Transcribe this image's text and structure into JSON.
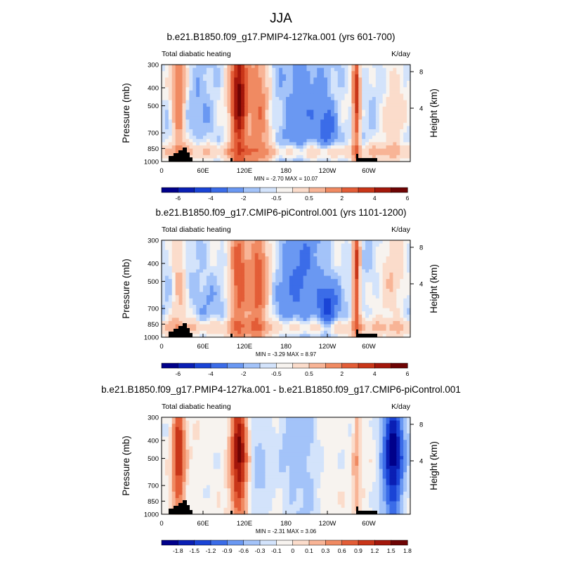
{
  "chart_data": {
    "type": "heatmap",
    "title": "JJA",
    "panels": [
      {
        "title": "b.e21.B1850.f09_g17.PMIP4-127ka.001 (yrs 601-700)",
        "left_label": "Total diabatic heating",
        "right_label": "K/day",
        "ylabel": "Pressure (mb)",
        "ylabel_right": "Height (km)",
        "y_ticks": [
          "300",
          "400",
          "500",
          "700",
          "850",
          "1000"
        ],
        "y_ticks_right": [
          "8",
          "4"
        ],
        "x_ticks": [
          "0",
          "60E",
          "120E",
          "180",
          "120W",
          "60W"
        ],
        "stats": "MIN = -2.70   MAX = 10.07",
        "colorbar_labels": [
          "-6",
          "-4",
          "-2",
          "-0.5",
          "0.5",
          "2",
          "4",
          "6"
        ],
        "anomaly": false,
        "features": {
          "w_indian": 3.0,
          "maritime": 6.5,
          "w_pacific": 3.0,
          "c_pacific": -1.0,
          "e_pacific": -1.8,
          "americas": 4.5,
          "atlantic": 0.8
        }
      },
      {
        "title": "b.e21.B1850.f09_g17.CMIP6-piControl.001 (yrs 1101-1200)",
        "left_label": "Total diabatic heating",
        "right_label": "K/day",
        "ylabel": "Pressure (mb)",
        "ylabel_right": "Height (km)",
        "y_ticks": [
          "300",
          "400",
          "500",
          "700",
          "850",
          "1000"
        ],
        "y_ticks_right": [
          "8",
          "4"
        ],
        "x_ticks": [
          "0",
          "60E",
          "120E",
          "180",
          "120W",
          "60W"
        ],
        "stats": "MIN = -3.29   MAX =  8.97",
        "colorbar_labels": [
          "-6",
          "-4",
          "-2",
          "-0.5",
          "0.5",
          "2",
          "4",
          "6"
        ],
        "anomaly": false,
        "features": {
          "w_indian": 1.5,
          "maritime": 4.0,
          "w_pacific": 3.5,
          "c_pacific": -1.2,
          "e_pacific": -2.2,
          "americas": 4.5,
          "atlantic": 1.0
        }
      },
      {
        "title": "b.e21.B1850.f09_g17.PMIP4-127ka.001 - b.e21.B1850.f09_g17.CMIP6-piControl.001",
        "left_label": "Total diabatic heating",
        "right_label": "K/day",
        "ylabel": "Pressure (mb)",
        "ylabel_right": "Height (km)",
        "y_ticks": [
          "300",
          "400",
          "500",
          "700",
          "850",
          "1000"
        ],
        "y_ticks_right": [
          "8",
          "4"
        ],
        "x_ticks": [
          "0",
          "60E",
          "120E",
          "180",
          "120W",
          "60W"
        ],
        "stats": "MIN = -2.31   MAX =  3.06",
        "colorbar_labels": [
          "-1.8",
          "-1.5",
          "-1.2",
          "-0.9",
          "-0.6",
          "-0.3",
          "-0.1",
          "0",
          "0.1",
          "0.3",
          "0.6",
          "0.9",
          "1.2",
          "1.5",
          "1.8"
        ],
        "anomaly": true,
        "features": {
          "w_indian": 1.5,
          "maritime": 1.9,
          "w_pacific": -0.4,
          "c_pacific": -0.5,
          "e_pacific": 0.2,
          "americas": 0.6,
          "atlantic": -2.0
        }
      }
    ]
  },
  "colors": {
    "scale": [
      "#00008a",
      "#0a1fb4",
      "#1a44d6",
      "#3b6ce8",
      "#6a98f2",
      "#a3c3f9",
      "#d3e3fb",
      "#f7f3ef",
      "#fbdccb",
      "#f8b496",
      "#f08a62",
      "#e35d37",
      "#c93619",
      "#a3170b",
      "#6e0404"
    ],
    "land": "#000000"
  }
}
